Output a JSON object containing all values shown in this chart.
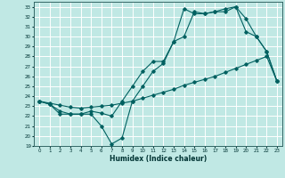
{
  "xlabel": "Humidex (Indice chaleur)",
  "ylabel": "",
  "bg_color": "#c0e8e4",
  "grid_color": "#ffffff",
  "line_color": "#006060",
  "xlim": [
    -0.5,
    23.5
  ],
  "ylim": [
    19,
    33.5
  ],
  "xticks": [
    0,
    1,
    2,
    3,
    4,
    5,
    6,
    7,
    8,
    9,
    10,
    11,
    12,
    13,
    14,
    15,
    16,
    17,
    18,
    19,
    20,
    21,
    22,
    23
  ],
  "yticks": [
    19,
    20,
    21,
    22,
    23,
    24,
    25,
    26,
    27,
    28,
    29,
    30,
    31,
    32,
    33
  ],
  "line1_x": [
    0,
    1,
    2,
    3,
    4,
    5,
    6,
    7,
    8,
    9,
    10,
    11,
    12,
    13,
    14,
    15,
    16,
    17,
    18,
    19,
    20,
    21,
    22,
    23
  ],
  "line1_y": [
    23.5,
    23.2,
    22.2,
    22.2,
    22.2,
    22.2,
    21.0,
    19.2,
    19.8,
    23.5,
    25.0,
    26.5,
    27.3,
    29.5,
    32.8,
    32.3,
    32.3,
    32.5,
    32.5,
    33.0,
    30.5,
    30.0,
    28.5,
    25.5
  ],
  "line2_x": [
    0,
    1,
    2,
    3,
    4,
    5,
    6,
    7,
    8,
    9,
    10,
    11,
    12,
    13,
    14,
    15,
    16,
    17,
    18,
    19,
    20,
    21,
    22,
    23
  ],
  "line2_y": [
    23.5,
    23.3,
    23.1,
    22.9,
    22.8,
    22.9,
    23.0,
    23.1,
    23.3,
    23.5,
    23.8,
    24.1,
    24.4,
    24.7,
    25.1,
    25.4,
    25.7,
    26.0,
    26.4,
    26.8,
    27.2,
    27.6,
    28.0,
    25.5
  ],
  "line3_x": [
    0,
    1,
    2,
    3,
    4,
    5,
    6,
    7,
    8,
    9,
    10,
    11,
    12,
    13,
    14,
    15,
    16,
    17,
    18,
    19,
    20,
    21,
    22,
    23
  ],
  "line3_y": [
    23.5,
    23.2,
    22.5,
    22.2,
    22.2,
    22.5,
    22.3,
    22.0,
    23.5,
    25.0,
    26.5,
    27.5,
    27.5,
    29.5,
    30.0,
    32.5,
    32.3,
    32.5,
    32.8,
    33.0,
    31.8,
    30.0,
    28.5,
    25.5
  ]
}
